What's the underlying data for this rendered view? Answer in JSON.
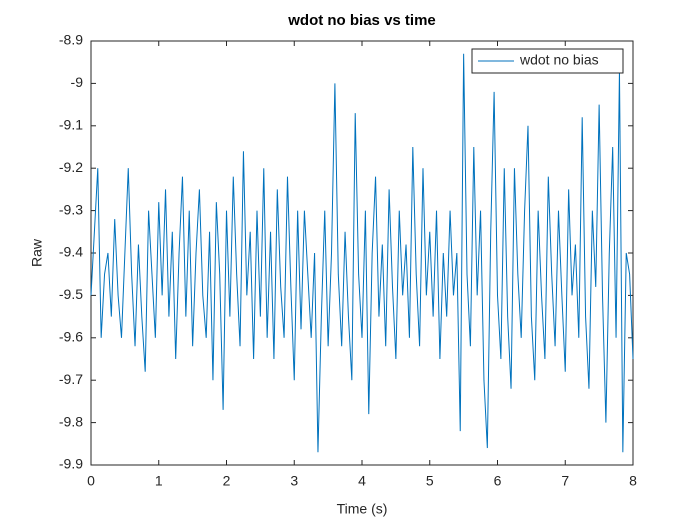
{
  "chart_data": {
    "type": "line",
    "title": "wdot no bias vs time",
    "x_label": "Time (s)",
    "y_label": "Raw",
    "xlim": [
      0,
      8
    ],
    "ylim": [
      -9.9,
      -8.9
    ],
    "xticks": [
      0,
      1,
      2,
      3,
      4,
      5,
      6,
      7,
      8
    ],
    "yticks": [
      -8.9,
      -9,
      -9.1,
      -9.2,
      -9.3,
      -9.4,
      -9.5,
      -9.6,
      -9.7,
      -9.8,
      -9.9
    ],
    "legend_position": "upper-right",
    "grid": false,
    "x": [
      0,
      0.05,
      0.1,
      0.15,
      0.2,
      0.25,
      0.3,
      0.35,
      0.4,
      0.45,
      0.5,
      0.55,
      0.6,
      0.65,
      0.7,
      0.75,
      0.8,
      0.85,
      0.9,
      0.95,
      1,
      1.05,
      1.1,
      1.15,
      1.2,
      1.25,
      1.3,
      1.35,
      1.4,
      1.45,
      1.5,
      1.55,
      1.6,
      1.65,
      1.7,
      1.75,
      1.8,
      1.85,
      1.9,
      1.95,
      2,
      2.05,
      2.1,
      2.15,
      2.2,
      2.25,
      2.3,
      2.35,
      2.4,
      2.45,
      2.5,
      2.55,
      2.6,
      2.65,
      2.7,
      2.75,
      2.8,
      2.85,
      2.9,
      2.95,
      3,
      3.05,
      3.1,
      3.15,
      3.2,
      3.25,
      3.3,
      3.35,
      3.4,
      3.45,
      3.5,
      3.55,
      3.6,
      3.65,
      3.7,
      3.75,
      3.8,
      3.85,
      3.9,
      3.95,
      4,
      4.05,
      4.1,
      4.15,
      4.2,
      4.25,
      4.3,
      4.35,
      4.4,
      4.45,
      4.5,
      4.55,
      4.6,
      4.65,
      4.7,
      4.75,
      4.8,
      4.85,
      4.9,
      4.95,
      5,
      5.05,
      5.1,
      5.15,
      5.2,
      5.25,
      5.3,
      5.35,
      5.4,
      5.45,
      5.5,
      5.55,
      5.6,
      5.65,
      5.7,
      5.75,
      5.8,
      5.85,
      5.9,
      5.95,
      6,
      6.05,
      6.1,
      6.15,
      6.2,
      6.25,
      6.3,
      6.35,
      6.4,
      6.45,
      6.5,
      6.55,
      6.6,
      6.65,
      6.7,
      6.75,
      6.8,
      6.85,
      6.9,
      6.95,
      7,
      7.05,
      7.1,
      7.15,
      7.2,
      7.25,
      7.3,
      7.35,
      7.4,
      7.45,
      7.5,
      7.55,
      7.6,
      7.65,
      7.7,
      7.75,
      7.8,
      7.85,
      7.9,
      7.95,
      8
    ],
    "series": [
      {
        "name": "wdot no bias",
        "color": "#0072BD",
        "values": [
          -9.5,
          -9.35,
          -9.2,
          -9.6,
          -9.45,
          -9.4,
          -9.55,
          -9.32,
          -9.5,
          -9.6,
          -9.4,
          -9.2,
          -9.45,
          -9.62,
          -9.38,
          -9.55,
          -9.68,
          -9.3,
          -9.45,
          -9.6,
          -9.28,
          -9.5,
          -9.25,
          -9.55,
          -9.35,
          -9.65,
          -9.4,
          -9.22,
          -9.55,
          -9.3,
          -9.62,
          -9.4,
          -9.25,
          -9.5,
          -9.6,
          -9.35,
          -9.7,
          -9.28,
          -9.45,
          -9.77,
          -9.3,
          -9.55,
          -9.22,
          -9.45,
          -9.62,
          -9.16,
          -9.5,
          -9.35,
          -9.65,
          -9.3,
          -9.55,
          -9.2,
          -9.6,
          -9.35,
          -9.65,
          -9.25,
          -9.48,
          -9.6,
          -9.22,
          -9.48,
          -9.7,
          -9.3,
          -9.58,
          -9.3,
          -9.45,
          -9.6,
          -9.4,
          -9.87,
          -9.55,
          -9.3,
          -9.62,
          -9.4,
          -9,
          -9.45,
          -9.62,
          -9.35,
          -9.55,
          -9.7,
          -9.07,
          -9.45,
          -9.6,
          -9.3,
          -9.78,
          -9.4,
          -9.22,
          -9.55,
          -9.38,
          -9.62,
          -9.25,
          -9.48,
          -9.65,
          -9.3,
          -9.5,
          -9.38,
          -9.6,
          -9.15,
          -9.45,
          -9.62,
          -9.2,
          -9.5,
          -9.35,
          -9.55,
          -9.3,
          -9.65,
          -9.4,
          -9.55,
          -9.3,
          -9.5,
          -9.4,
          -9.82,
          -8.93,
          -9.45,
          -9.62,
          -9.15,
          -9.5,
          -9.3,
          -9.7,
          -9.86,
          -9.35,
          -9.02,
          -9.5,
          -9.65,
          -9.2,
          -9.55,
          -9.72,
          -9.2,
          -9.45,
          -9.6,
          -9.3,
          -9.1,
          -9.55,
          -9.7,
          -9.3,
          -9.5,
          -9.65,
          -9.22,
          -9.45,
          -9.62,
          -9.3,
          -9.5,
          -9.68,
          -9.25,
          -9.5,
          -9.38,
          -9.6,
          -9.08,
          -9.55,
          -9.72,
          -9.3,
          -9.48,
          -9.05,
          -9.5,
          -9.8,
          -9.4,
          -9.15,
          -9.6,
          -8.97,
          -9.87,
          -9.4,
          -9.45,
          -9.65
        ]
      }
    ]
  }
}
